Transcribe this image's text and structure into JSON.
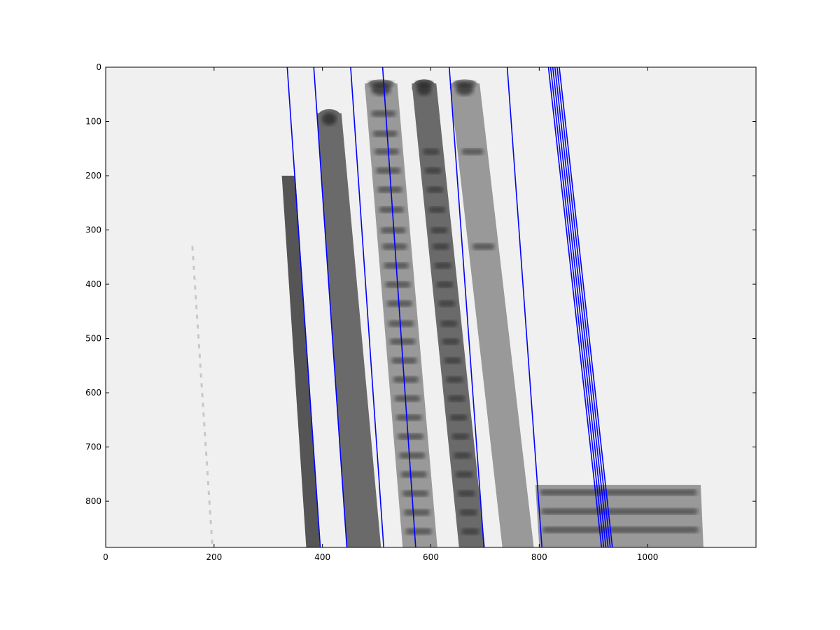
{
  "chart_data": {
    "type": "image",
    "title": "",
    "xlabel": "",
    "ylabel": "",
    "xlim": [
      0,
      1200
    ],
    "ylim": [
      885,
      0
    ],
    "x_inverted": false,
    "y_inverted": true,
    "grid": false,
    "colors": {
      "background": "#f0f0f0",
      "line": "#0000ff",
      "band_dark": "#555555",
      "band_mid": "#6a6a6a",
      "band_light": "#999999",
      "stripe": "#222222"
    },
    "xticks": [
      {
        "value": 0,
        "label": "0"
      },
      {
        "value": 200,
        "label": "200"
      },
      {
        "value": 400,
        "label": "400"
      },
      {
        "value": 600,
        "label": "600"
      },
      {
        "value": 800,
        "label": "800"
      },
      {
        "value": 1000,
        "label": "1000"
      }
    ],
    "yticks": [
      {
        "value": 0,
        "label": "0"
      },
      {
        "value": 100,
        "label": "100"
      },
      {
        "value": 200,
        "label": "200"
      },
      {
        "value": 300,
        "label": "300"
      },
      {
        "value": 400,
        "label": "400"
      },
      {
        "value": 500,
        "label": "500"
      },
      {
        "value": 600,
        "label": "600"
      },
      {
        "value": 700,
        "label": "700"
      },
      {
        "value": 800,
        "label": "800"
      }
    ],
    "lines": [
      {
        "x": [
          335,
          396
        ],
        "y": [
          0,
          885
        ]
      },
      {
        "x": [
          384,
          445
        ],
        "y": [
          0,
          885
        ]
      },
      {
        "x": [
          452,
          513
        ],
        "y": [
          0,
          885
        ]
      },
      {
        "x": [
          511,
          572
        ],
        "y": [
          0,
          885
        ]
      },
      {
        "x": [
          634,
          698
        ],
        "y": [
          0,
          885
        ]
      },
      {
        "x": [
          741,
          805
        ],
        "y": [
          0,
          885
        ]
      },
      {
        "x": [
          817,
          915
        ],
        "y": [
          0,
          885
        ]
      },
      {
        "x": [
          821,
          919
        ],
        "y": [
          0,
          885
        ]
      },
      {
        "x": [
          825,
          923
        ],
        "y": [
          0,
          885
        ]
      },
      {
        "x": [
          829,
          927
        ],
        "y": [
          0,
          885
        ]
      },
      {
        "x": [
          833,
          931
        ],
        "y": [
          0,
          885
        ]
      },
      {
        "x": [
          837,
          935
        ],
        "y": [
          0,
          885
        ]
      }
    ],
    "bands": [
      {
        "top": 200,
        "x_top": [
          325,
          350
        ],
        "x_bottom": [
          370,
          395
        ],
        "shade": "band_dark",
        "cap": false,
        "stripes": []
      },
      {
        "top": 85,
        "x_top": [
          390,
          435
        ],
        "x_bottom": [
          445,
          508
        ],
        "shade": "band_mid",
        "cap": true,
        "stripes": []
      },
      {
        "top": 30,
        "x_top": [
          478,
          538
        ],
        "x_bottom": [
          548,
          612
        ],
        "shade": "band_light",
        "cap": true,
        "stripes": [
          30,
          85,
          122,
          155,
          190,
          225,
          262,
          300,
          330,
          365,
          400,
          435,
          472,
          505,
          540,
          575,
          610,
          645,
          680,
          715,
          750,
          785,
          820,
          855
        ]
      },
      {
        "top": 30,
        "x_top": [
          565,
          610
        ],
        "x_bottom": [
          652,
          700
        ],
        "shade": "band_mid",
        "cap": true,
        "stripes": [
          30,
          155,
          190,
          225,
          262,
          300,
          330,
          365,
          400,
          435,
          472,
          505,
          540,
          575,
          610,
          645,
          680,
          715,
          750,
          785,
          820,
          855
        ]
      },
      {
        "top": 30,
        "x_top": [
          635,
          690
        ],
        "x_bottom": [
          732,
          790
        ],
        "shade": "band_light",
        "cap": true,
        "stripes": [
          30,
          155,
          330
        ]
      },
      {
        "top": 770,
        "x_top": [
          793,
          1098
        ],
        "x_bottom": [
          800,
          1103
        ],
        "shade": "band_light",
        "cap": false,
        "stripes": [
          783,
          818,
          852
        ]
      }
    ],
    "faint_dashed_line": {
      "x": [
        160,
        197
      ],
      "y": [
        330,
        885
      ]
    }
  }
}
